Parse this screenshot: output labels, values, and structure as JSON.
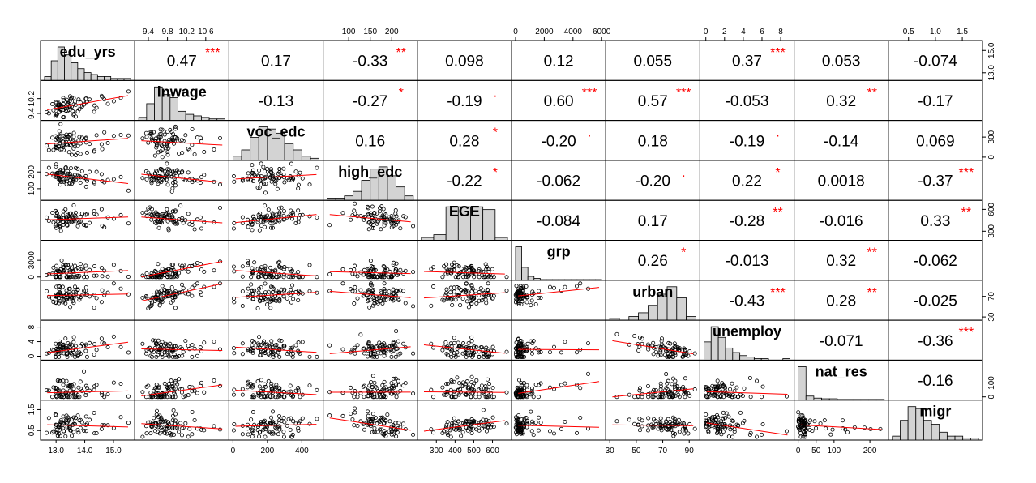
{
  "chart_data": {
    "type": "scatter-matrix",
    "variables": [
      "edu_yrs",
      "lnwage",
      "voc_edc",
      "high_edc",
      "EGE",
      "grp",
      "urban",
      "unemploy",
      "nat_res",
      "migr"
    ],
    "ranges": [
      [
        12.6,
        15.6
      ],
      [
        9.2,
        11.0
      ],
      [
        0,
        500
      ],
      [
        50,
        250
      ],
      [
        220,
        680
      ],
      [
        0,
        6000
      ],
      [
        30,
        95
      ],
      [
        -0.2,
        9.0
      ],
      [
        0,
        240
      ],
      [
        0.2,
        1.8
      ]
    ],
    "ticks": [
      [
        "13.0",
        "14.0",
        "15.0"
      ],
      [
        "9.4",
        "9.8",
        "10.2",
        "10.6"
      ],
      [
        "0",
        "200",
        "400"
      ],
      [
        "100",
        "150",
        "200"
      ],
      [
        "300",
        "400",
        "500",
        "600"
      ],
      [
        "0",
        "2000",
        "4000",
        "6000"
      ],
      [
        "30",
        "50",
        "70",
        "90"
      ],
      [
        "0",
        "2",
        "4",
        "6",
        "8"
      ],
      [
        "0",
        "50",
        "100",
        "200"
      ],
      [
        "0.5",
        "1.0",
        "1.5"
      ]
    ],
    "right_ticks": [
      [
        "13.0",
        "15.0"
      ],
      [
        "9.4",
        "10.2"
      ],
      [
        "0",
        "300"
      ],
      [
        "100",
        "200"
      ],
      [
        "300",
        "600"
      ],
      [
        "0",
        "3000"
      ],
      [
        "30",
        "70"
      ],
      [
        "0",
        "4",
        "8"
      ],
      [
        "0",
        "100"
      ],
      [
        "0.5",
        "1.5"
      ]
    ],
    "correlations": [
      {
        "i": 0,
        "j": 1,
        "r": "0.47",
        "sig": "***"
      },
      {
        "i": 0,
        "j": 2,
        "r": "0.17",
        "sig": ""
      },
      {
        "i": 0,
        "j": 3,
        "r": "-0.33",
        "sig": "**"
      },
      {
        "i": 0,
        "j": 4,
        "r": "0.098",
        "sig": ""
      },
      {
        "i": 0,
        "j": 5,
        "r": "0.12",
        "sig": ""
      },
      {
        "i": 0,
        "j": 6,
        "r": "0.055",
        "sig": ""
      },
      {
        "i": 0,
        "j": 7,
        "r": "0.37",
        "sig": "***"
      },
      {
        "i": 0,
        "j": 8,
        "r": "0.053",
        "sig": ""
      },
      {
        "i": 0,
        "j": 9,
        "r": "-0.074",
        "sig": ""
      },
      {
        "i": 1,
        "j": 2,
        "r": "-0.13",
        "sig": ""
      },
      {
        "i": 1,
        "j": 3,
        "r": "-0.27",
        "sig": "*"
      },
      {
        "i": 1,
        "j": 4,
        "r": "-0.19",
        "sig": "."
      },
      {
        "i": 1,
        "j": 5,
        "r": "0.60",
        "sig": "***"
      },
      {
        "i": 1,
        "j": 6,
        "r": "0.57",
        "sig": "***"
      },
      {
        "i": 1,
        "j": 7,
        "r": "-0.053",
        "sig": ""
      },
      {
        "i": 1,
        "j": 8,
        "r": "0.32",
        "sig": "**"
      },
      {
        "i": 1,
        "j": 9,
        "r": "-0.17",
        "sig": ""
      },
      {
        "i": 2,
        "j": 3,
        "r": "0.16",
        "sig": ""
      },
      {
        "i": 2,
        "j": 4,
        "r": "0.28",
        "sig": "*"
      },
      {
        "i": 2,
        "j": 5,
        "r": "-0.20",
        "sig": "."
      },
      {
        "i": 2,
        "j": 6,
        "r": "0.18",
        "sig": ""
      },
      {
        "i": 2,
        "j": 7,
        "r": "-0.19",
        "sig": "."
      },
      {
        "i": 2,
        "j": 8,
        "r": "-0.14",
        "sig": ""
      },
      {
        "i": 2,
        "j": 9,
        "r": "0.069",
        "sig": ""
      },
      {
        "i": 3,
        "j": 4,
        "r": "-0.22",
        "sig": "*"
      },
      {
        "i": 3,
        "j": 5,
        "r": "-0.062",
        "sig": ""
      },
      {
        "i": 3,
        "j": 6,
        "r": "-0.20",
        "sig": "."
      },
      {
        "i": 3,
        "j": 7,
        "r": "0.22",
        "sig": "*"
      },
      {
        "i": 3,
        "j": 8,
        "r": "0.0018",
        "sig": ""
      },
      {
        "i": 3,
        "j": 9,
        "r": "-0.37",
        "sig": "***"
      },
      {
        "i": 4,
        "j": 5,
        "r": "-0.084",
        "sig": ""
      },
      {
        "i": 4,
        "j": 6,
        "r": "0.17",
        "sig": ""
      },
      {
        "i": 4,
        "j": 7,
        "r": "-0.28",
        "sig": "**"
      },
      {
        "i": 4,
        "j": 8,
        "r": "-0.016",
        "sig": ""
      },
      {
        "i": 4,
        "j": 9,
        "r": "0.33",
        "sig": "**"
      },
      {
        "i": 5,
        "j": 6,
        "r": "0.26",
        "sig": "*"
      },
      {
        "i": 5,
        "j": 7,
        "r": "-0.013",
        "sig": ""
      },
      {
        "i": 5,
        "j": 8,
        "r": "0.32",
        "sig": "**"
      },
      {
        "i": 5,
        "j": 9,
        "r": "-0.062",
        "sig": ""
      },
      {
        "i": 6,
        "j": 7,
        "r": "-0.43",
        "sig": "***"
      },
      {
        "i": 6,
        "j": 8,
        "r": "0.28",
        "sig": "**"
      },
      {
        "i": 6,
        "j": 9,
        "r": "-0.025",
        "sig": ""
      },
      {
        "i": 7,
        "j": 8,
        "r": "-0.071",
        "sig": ""
      },
      {
        "i": 7,
        "j": 9,
        "r": "-0.36",
        "sig": "***"
      },
      {
        "i": 8,
        "j": 9,
        "r": "-0.16",
        "sig": ""
      }
    ],
    "histograms": [
      [
        2,
        10,
        17,
        13,
        9,
        6,
        4,
        3,
        2,
        2,
        1,
        1,
        1
      ],
      [
        2,
        11,
        22,
        17,
        15,
        6,
        4,
        3,
        2,
        1,
        1
      ],
      [
        2,
        5,
        11,
        16,
        15,
        13,
        8,
        5,
        2,
        1
      ],
      [
        1,
        1,
        2,
        4,
        9,
        14,
        15,
        11,
        6,
        2
      ],
      [
        1,
        2,
        12,
        12,
        12,
        11,
        1
      ],
      [
        52,
        20,
        6,
        3,
        1,
        1,
        1,
        1,
        1,
        1,
        1,
        1,
        1,
        1
      ],
      [
        1,
        0,
        2,
        4,
        8,
        14,
        18,
        12,
        2
      ],
      [
        12,
        22,
        15,
        8,
        5,
        3,
        2,
        1,
        1,
        0,
        0,
        1
      ],
      [
        50,
        6,
        3,
        2,
        2,
        1,
        1,
        1,
        1,
        1,
        1
      ],
      [
        2,
        10,
        17,
        16,
        10,
        8,
        4,
        2,
        2,
        1,
        1
      ]
    ],
    "grid": false
  }
}
